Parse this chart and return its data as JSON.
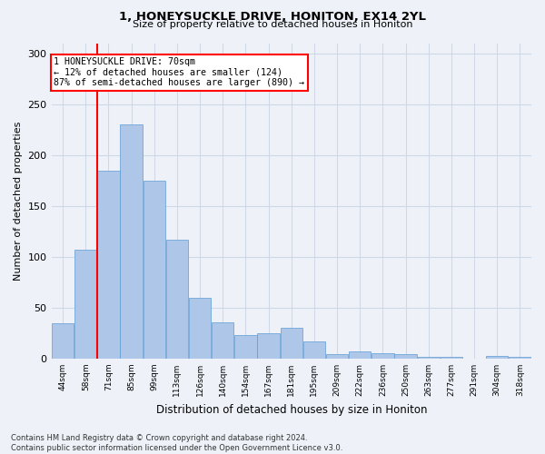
{
  "title_line1": "1, HONEYSUCKLE DRIVE, HONITON, EX14 2YL",
  "title_line2": "Size of property relative to detached houses in Honiton",
  "xlabel": "Distribution of detached houses by size in Honiton",
  "ylabel": "Number of detached properties",
  "categories": [
    "44sqm",
    "58sqm",
    "71sqm",
    "85sqm",
    "99sqm",
    "113sqm",
    "126sqm",
    "140sqm",
    "154sqm",
    "167sqm",
    "181sqm",
    "195sqm",
    "209sqm",
    "222sqm",
    "236sqm",
    "250sqm",
    "263sqm",
    "277sqm",
    "291sqm",
    "304sqm",
    "318sqm"
  ],
  "values": [
    35,
    107,
    185,
    230,
    175,
    117,
    60,
    36,
    23,
    25,
    30,
    17,
    4,
    7,
    5,
    4,
    2,
    2,
    0,
    3,
    2
  ],
  "bar_color": "#aec6e8",
  "bar_edge_color": "#5b9bd5",
  "grid_color": "#d0d8e8",
  "background_color": "#eef2f8",
  "vline_x": 1.5,
  "vline_color": "red",
  "annotation_text": "1 HONEYSUCKLE DRIVE: 70sqm\n← 12% of detached houses are smaller (124)\n87% of semi-detached houses are larger (890) →",
  "annotation_box_color": "white",
  "annotation_box_edge_color": "red",
  "footnote": "Contains HM Land Registry data © Crown copyright and database right 2024.\nContains public sector information licensed under the Open Government Licence v3.0.",
  "ylim": [
    0,
    310
  ],
  "yticks": [
    0,
    50,
    100,
    150,
    200,
    250,
    300
  ]
}
